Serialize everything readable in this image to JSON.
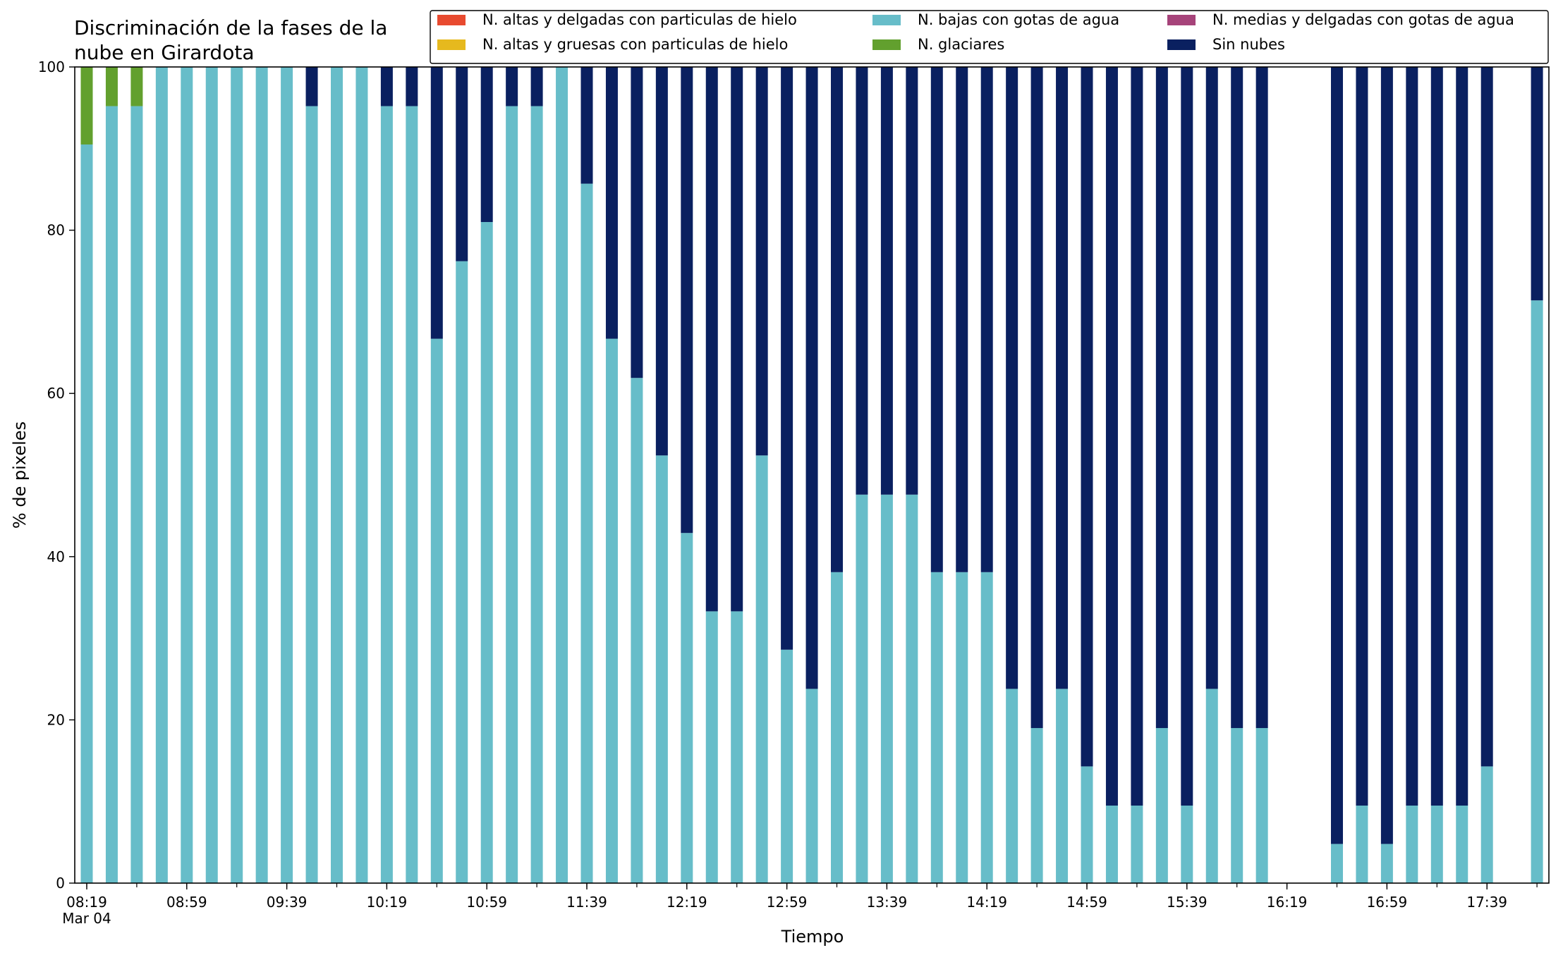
{
  "chart_data": {
    "type": "bar",
    "stacked": true,
    "title_lines": [
      "Discriminación de la fases de la",
      "nube en Girardota"
    ],
    "xlabel": "Tiempo",
    "ylabel": "% de pixeles",
    "ylim": [
      0,
      100
    ],
    "yticks": [
      "0",
      "20",
      "40",
      "60",
      "80",
      "100"
    ],
    "xticks": [
      {
        "slot": 0,
        "label": "08:19",
        "sublabel": "Mar 04"
      },
      {
        "slot": 4,
        "label": "08:59"
      },
      {
        "slot": 8,
        "label": "09:39"
      },
      {
        "slot": 12,
        "label": "10:19"
      },
      {
        "slot": 16,
        "label": "10:59"
      },
      {
        "slot": 20,
        "label": "11:39"
      },
      {
        "slot": 24,
        "label": "12:19"
      },
      {
        "slot": 28,
        "label": "12:59"
      },
      {
        "slot": 32,
        "label": "13:39"
      },
      {
        "slot": 36,
        "label": "14:19"
      },
      {
        "slot": 40,
        "label": "14:59"
      },
      {
        "slot": 44,
        "label": "15:39"
      },
      {
        "slot": 48,
        "label": "16:19"
      },
      {
        "slot": 52,
        "label": "16:59"
      },
      {
        "slot": 56,
        "label": "17:39"
      }
    ],
    "slot_minutes": 10,
    "slot_count": 59,
    "grid": false,
    "legend_position": "top-right",
    "series": [
      {
        "name": "N. altas y delgadas con particulas de hielo",
        "color": "#e84a2f",
        "values": [
          0,
          0,
          0,
          0,
          0,
          0,
          0,
          0,
          0,
          0,
          0,
          0,
          0,
          0,
          0,
          0,
          0,
          0,
          0,
          0,
          0,
          0,
          0,
          0,
          0,
          0,
          0,
          0,
          0,
          0,
          0,
          0,
          0,
          0,
          0,
          0,
          0,
          0,
          0,
          0,
          0,
          0,
          0,
          0,
          0,
          0,
          0,
          null,
          null,
          0,
          0,
          0,
          0,
          0,
          0,
          0,
          0,
          null,
          0
        ]
      },
      {
        "name": "N. altas y gruesas con particulas de hielo",
        "color": "#e6b91e",
        "values": [
          0,
          0,
          0,
          0,
          0,
          0,
          0,
          0,
          0,
          0,
          0,
          0,
          0,
          0,
          0,
          0,
          0,
          0,
          0,
          0,
          0,
          0,
          0,
          0,
          0,
          0,
          0,
          0,
          0,
          0,
          0,
          0,
          0,
          0,
          0,
          0,
          0,
          0,
          0,
          0,
          0,
          0,
          0,
          0,
          0,
          0,
          0,
          null,
          null,
          0,
          0,
          0,
          0,
          0,
          0,
          0,
          0,
          null,
          0
        ]
      },
      {
        "name": "N. bajas con gotas de agua",
        "color": "#67bdc9",
        "values": [
          90.5,
          95.2,
          95.2,
          100,
          100,
          100,
          100,
          100,
          100,
          95.2,
          100,
          100,
          95.2,
          95.2,
          66.7,
          76.2,
          81.0,
          95.2,
          95.2,
          100,
          85.7,
          66.7,
          61.9,
          52.4,
          42.9,
          33.3,
          33.3,
          52.4,
          28.6,
          23.8,
          38.1,
          47.6,
          47.6,
          47.6,
          38.1,
          38.1,
          38.1,
          23.8,
          19.0,
          23.8,
          14.3,
          9.5,
          9.5,
          19.0,
          9.5,
          23.8,
          19.0,
          19.0,
          null,
          null,
          4.8,
          9.5,
          4.8,
          9.5,
          9.5,
          9.5,
          14.3,
          null,
          71.4
        ]
      },
      {
        "name": "N. glaciares",
        "color": "#62a02e",
        "values": [
          9.5,
          4.8,
          4.8,
          0,
          0,
          0,
          0,
          0,
          0,
          0,
          0,
          0,
          0,
          0,
          0,
          0,
          0,
          0,
          0,
          0,
          0,
          0,
          0,
          0,
          0,
          0,
          0,
          0,
          0,
          0,
          0,
          0,
          0,
          0,
          0,
          0,
          0,
          0,
          0,
          0,
          0,
          0,
          0,
          0,
          0,
          0,
          0,
          null,
          null,
          0,
          0,
          0,
          0,
          0,
          0,
          0,
          0,
          null,
          0
        ]
      },
      {
        "name": "N. medias y delgadas con gotas de agua",
        "color": "#a6437a",
        "values": [
          0,
          0,
          0,
          0,
          0,
          0,
          0,
          0,
          0,
          0,
          0,
          0,
          0,
          0,
          0,
          0,
          0,
          0,
          0,
          0,
          0,
          0,
          0,
          0,
          0,
          0,
          0,
          0,
          0,
          0,
          0,
          0,
          0,
          0,
          0,
          0,
          0,
          0,
          0,
          0,
          0,
          0,
          0,
          0,
          0,
          0,
          0,
          null,
          null,
          0,
          0,
          0,
          0,
          0,
          0,
          0,
          0,
          null,
          0
        ]
      },
      {
        "name": "Sin nubes",
        "color": "#0a2060",
        "values": [
          0,
          0,
          0,
          0,
          0,
          0,
          0,
          0,
          0,
          4.8,
          0,
          0,
          4.8,
          4.8,
          33.3,
          23.8,
          19.0,
          4.8,
          4.8,
          0,
          14.3,
          33.3,
          38.1,
          47.6,
          57.1,
          66.7,
          66.7,
          47.6,
          71.4,
          76.2,
          61.9,
          52.4,
          52.4,
          52.4,
          61.9,
          61.9,
          61.9,
          76.2,
          81.0,
          76.2,
          85.7,
          90.5,
          90.5,
          81.0,
          90.5,
          76.2,
          81.0,
          81.0,
          null,
          null,
          95.2,
          90.5,
          95.2,
          90.5,
          90.5,
          90.5,
          85.7,
          null,
          28.6
        ]
      }
    ],
    "legend_order": [
      "N. altas y delgadas con particulas de hielo",
      "N. altas y gruesas con particulas de hielo",
      "N. bajas con gotas de agua",
      "N. glaciares",
      "N. medias y delgadas con gotas de agua",
      "Sin nubes"
    ]
  }
}
